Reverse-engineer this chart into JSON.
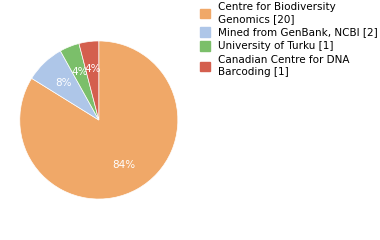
{
  "labels": [
    "Centre for Biodiversity\nGenomics [20]",
    "Mined from GenBank, NCBI [2]",
    "University of Turku [1]",
    "Canadian Centre for DNA\nBarcoding [1]"
  ],
  "values": [
    83,
    8,
    4,
    4
  ],
  "colors": [
    "#f0a868",
    "#aec6e8",
    "#7bbf6a",
    "#d45f4e"
  ],
  "background_color": "#ffffff",
  "legend_fontsize": 7.5,
  "autopct_fontsize": 7.5
}
